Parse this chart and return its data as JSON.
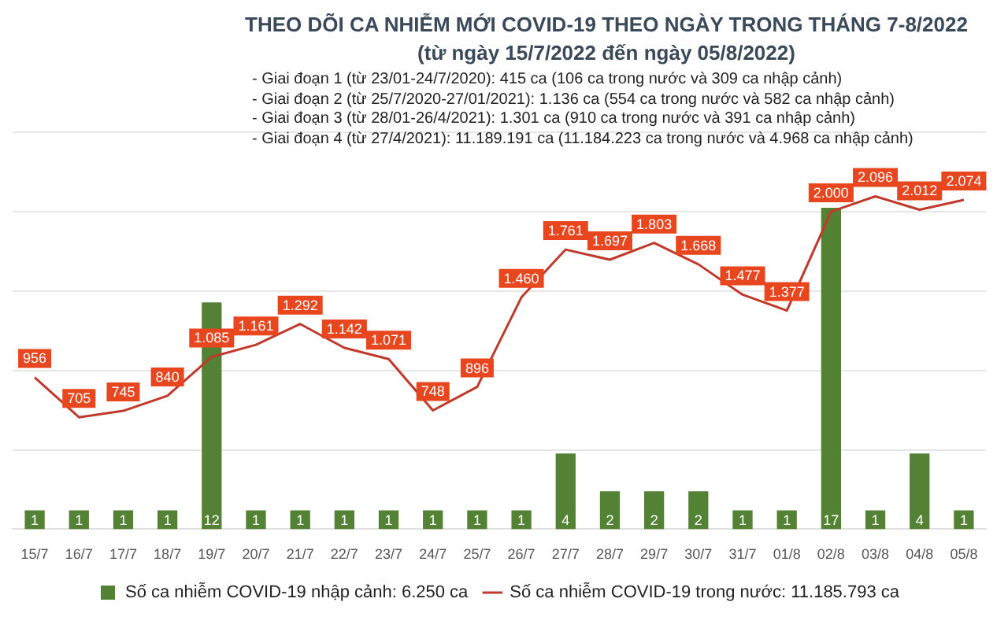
{
  "chart_data": {
    "type": "bar",
    "title": "THEO DÕI CA NHIỄM MỚI COVID-19 THEO NGÀY TRONG THÁNG 7-8/2022",
    "subtitle": "(từ ngày 15/7/2022 đến ngày 05/8/2022)",
    "annotations": [
      "- Giai đoạn 1 (từ 23/01-24/7/2020): 415 ca (106 ca trong nước và 309 ca nhập cảnh)",
      "- Giai đoạn 2 (từ 25/7/2020-27/01/2021): 1.136 ca (554 ca trong nước và 582 ca nhập cảnh)",
      "- Giai đoạn 3 (từ 28/01-26/4/2021): 1.301 ca (910 ca trong nước và 391 ca nhập cảnh)",
      "- Giai đoạn 4 (từ 27/4/2021): 11.189.191 ca (11.184.223 ca trong nước và 4.968 ca nhập cảnh)"
    ],
    "categories": [
      "15/7",
      "16/7",
      "17/7",
      "18/7",
      "19/7",
      "20/7",
      "21/7",
      "22/7",
      "23/7",
      "24/7",
      "25/7",
      "26/7",
      "27/7",
      "28/7",
      "29/7",
      "30/7",
      "31/7",
      "01/8",
      "02/8",
      "03/8",
      "04/8",
      "05/8"
    ],
    "series": [
      {
        "axis": "y2",
        "name": "Số ca nhiễm COVID-19 nhập cảnh: 6.250 ca",
        "color": "#548235",
        "values": [
          1,
          1,
          1,
          1,
          12,
          1,
          1,
          1,
          1,
          1,
          1,
          1,
          4,
          2,
          2,
          2,
          1,
          1,
          17,
          1,
          4,
          1
        ]
      },
      {
        "type": "line",
        "name": "Số ca nhiễm COVID-19 trong nước: 11.185.793 ca",
        "color": "#c0392b",
        "values": [
          956,
          705,
          745,
          840,
          1085,
          1161,
          1292,
          1142,
          1071,
          748,
          896,
          1460,
          1761,
          1697,
          1803,
          1668,
          1477,
          1377,
          2000,
          2096,
          2012,
          2074
        ],
        "value_labels": [
          "956",
          "705",
          "745",
          "840",
          "1.085",
          "1.161",
          "1.292",
          "1.142",
          "1.071",
          "748",
          "896",
          "1.460",
          "1.761",
          "1.697",
          "1.803",
          "1.668",
          "1.477",
          "1.377",
          "2.000",
          "2.096",
          "2.012",
          "2.074"
        ]
      }
    ],
    "ylim": [
      0,
      2500
    ],
    "yticks": [
      {
        "value": 0,
        "label": null
      },
      {
        "value": 500,
        "label": null
      },
      {
        "value": 1000,
        "label": null
      },
      {
        "value": 1500,
        "label": null
      },
      {
        "value": 2000,
        "label": null
      },
      {
        "value": 2500,
        "label": null
      }
    ],
    "y2lim": [
      0,
      21
    ],
    "grid": "y",
    "legend": "bottom",
    "tick_labels": "x",
    "data_labels": true,
    "marker": "none"
  }
}
